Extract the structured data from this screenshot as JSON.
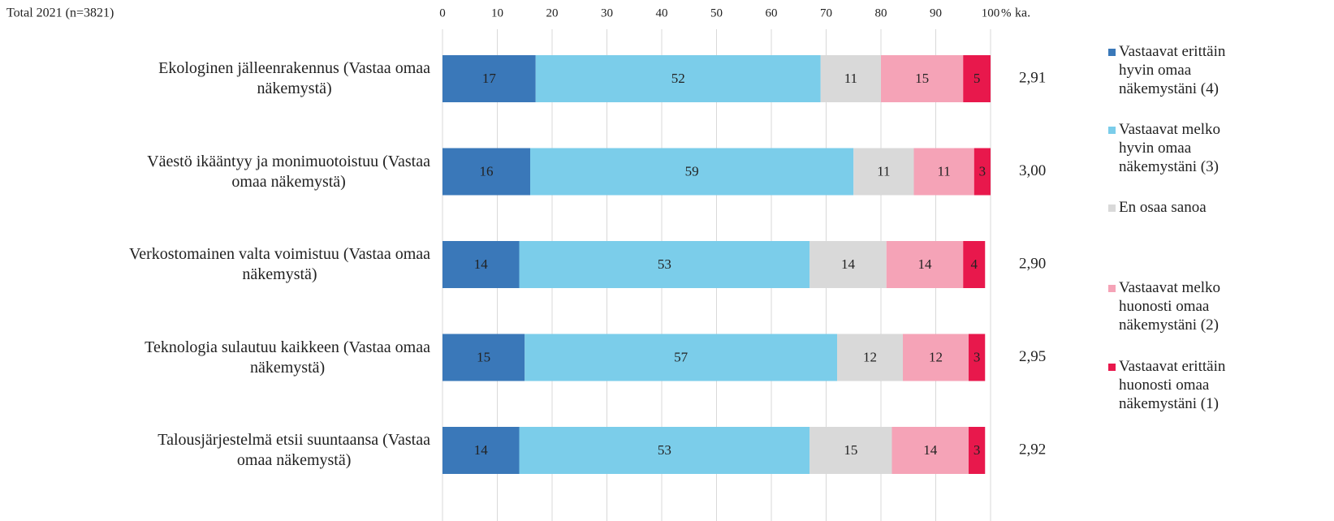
{
  "chart_data": {
    "type": "stacked_barh",
    "title": "Total 2021 (n=3821)",
    "categories": [
      "Ekologinen jälleenrakennus (Vastaa omaa\nnäkemystä)",
      "Väestö ikääntyy ja monimuotoistuu (Vastaa\nomaa näkemystä)",
      "Verkostomainen valta voimistuu (Vastaa omaa\nnäkemystä)",
      "Teknologia sulautuu kaikkeen (Vastaa omaa\nnäkemystä)",
      "Talousjärjestelmä etsii suuntaansa (Vastaa\nomaa näkemystä)"
    ],
    "series": [
      {
        "name": "Vastaavat erittäin\nhyvin omaa\nnäkemystäni (4)",
        "color": "#3a78b9",
        "values": [
          17,
          16,
          14,
          15,
          14
        ]
      },
      {
        "name": "Vastaavat melko\nhyvin omaa\nnäkemystäni (3)",
        "color": "#7bcdea",
        "values": [
          52,
          59,
          53,
          57,
          53
        ]
      },
      {
        "name": "En osaa sanoa",
        "color": "#d9d9d9",
        "values": [
          11,
          11,
          14,
          12,
          15
        ]
      },
      {
        "name": "Vastaavat melko\nhuonosti omaa\nnäkemystäni (2)",
        "color": "#f5a3b7",
        "values": [
          15,
          11,
          14,
          12,
          14
        ]
      },
      {
        "name": "Vastaavat erittäin\nhuonosti omaa\nnäkemystäni (1)",
        "color": "#e8184c",
        "values": [
          5,
          3,
          4,
          3,
          3
        ]
      }
    ],
    "xlim": [
      0,
      100
    ],
    "xticks": [
      0,
      10,
      20,
      30,
      40,
      50,
      60,
      70,
      80,
      90,
      100
    ],
    "x_unit": "%",
    "mean_header": "ka.",
    "means": [
      2.91,
      3.0,
      2.9,
      2.95,
      2.92
    ],
    "mean_labels": [
      "2,91",
      "3,00",
      "2,90",
      "2,95",
      "2,92"
    ],
    "grid": true
  }
}
